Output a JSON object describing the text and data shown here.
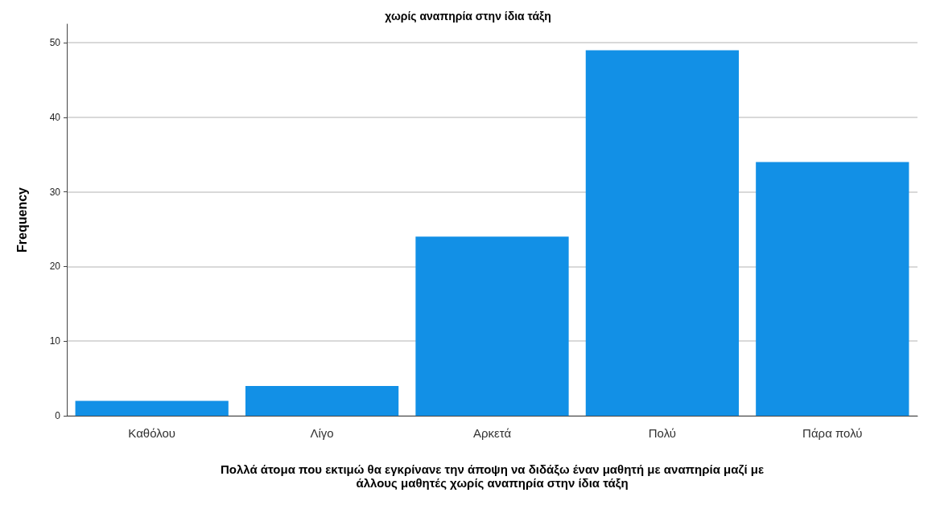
{
  "chart_data": {
    "type": "bar",
    "title": "χωρίς αναπηρία στην ίδια τάξη",
    "xlabel": "Πολλά άτομα που εκτιμώ θα εγκρίνανε την άποψη να διδάξω έναν μαθητή με αναπηρία μαζί με\nάλλους μαθητές χωρίς αναπηρία στην ίδια τάξη",
    "ylabel": "Frequency",
    "categories": [
      "Καθόλου",
      "Λίγο",
      "Αρκετά",
      "Πολύ",
      "Πάρα πολύ"
    ],
    "values": [
      2,
      4,
      24,
      49,
      34
    ],
    "color": "#1290e6",
    "ylim": [
      0,
      52.5
    ],
    "yticks": [
      0,
      10,
      20,
      30,
      40,
      50
    ],
    "grid": "y"
  }
}
